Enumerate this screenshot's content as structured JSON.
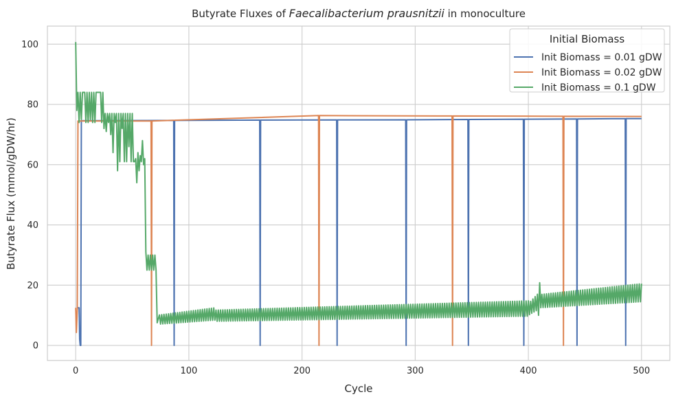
{
  "chart_data": {
    "type": "line",
    "title_prefix": "Butyrate Fluxes of ",
    "title_species": "Faecalibacterium prausnitzii",
    "title_suffix": " in monoculture",
    "xlabel": "Cycle",
    "ylabel": "Butyrate Flux (mmol/gDW/hr)",
    "xlim": [
      -25,
      525
    ],
    "ylim": [
      -5,
      106
    ],
    "xticks": [
      0,
      100,
      200,
      300,
      400,
      500
    ],
    "yticks": [
      0,
      20,
      40,
      60,
      80,
      100
    ],
    "grid": true,
    "legend": {
      "title": "Initial Biomass",
      "placement": "top-right"
    },
    "series": [
      {
        "name": "Init Biomass = 0.01 gDW",
        "color": "#4c72b0",
        "plateau": [
          [
            5,
            74.6
          ],
          [
            100,
            74.7
          ],
          [
            170,
            74.8
          ],
          [
            300,
            74.9
          ],
          [
            400,
            75.1
          ],
          [
            500,
            75.3
          ]
        ],
        "dips": [
          87,
          163,
          231,
          292,
          347,
          396,
          443,
          486
        ],
        "head": [
          [
            2,
            12.5
          ],
          [
            3,
            12.5
          ],
          [
            3.5,
            2
          ],
          [
            4,
            0
          ],
          [
            4.5,
            0
          ],
          [
            5,
            74.6
          ]
        ],
        "end_x": 500
      },
      {
        "name": "Init Biomass = 0.02 gDW",
        "color": "#dd8452",
        "plateau": [
          [
            2,
            74.5
          ],
          [
            100,
            74.5
          ],
          [
            156,
            74.6
          ],
          [
            157,
            76.4
          ],
          [
            215,
            76.3
          ],
          [
            300,
            76.2
          ],
          [
            500,
            76.0
          ]
        ],
        "dips": [
          67,
          215,
          333,
          431
        ],
        "head": [
          [
            0,
            12.5
          ],
          [
            0.6,
            4.3
          ],
          [
            1.4,
            12
          ],
          [
            2,
            74.5
          ]
        ],
        "end_x": 500
      },
      {
        "name": "Init Biomass = 0.1 gDW",
        "color": "#55a868",
        "points": [
          [
            0,
            100.7
          ],
          [
            1,
            78
          ],
          [
            2,
            84
          ],
          [
            3,
            74
          ],
          [
            4,
            84
          ],
          [
            5,
            75
          ],
          [
            6,
            84
          ],
          [
            7,
            84
          ],
          [
            8,
            84
          ],
          [
            9,
            74
          ],
          [
            10,
            84
          ],
          [
            11,
            74
          ],
          [
            12,
            84
          ],
          [
            13,
            75
          ],
          [
            14,
            84
          ],
          [
            15,
            74
          ],
          [
            16,
            84
          ],
          [
            17,
            74
          ],
          [
            18,
            84
          ],
          [
            19,
            84
          ],
          [
            20,
            84
          ],
          [
            21,
            84
          ],
          [
            22,
            84
          ],
          [
            23,
            74
          ],
          [
            24,
            84
          ],
          [
            25,
            72
          ],
          [
            26,
            77
          ],
          [
            27,
            71
          ],
          [
            28,
            77
          ],
          [
            29,
            74
          ],
          [
            30,
            77
          ],
          [
            31,
            70
          ],
          [
            32,
            77
          ],
          [
            33,
            64
          ],
          [
            34,
            77
          ],
          [
            35,
            74
          ],
          [
            36,
            77
          ],
          [
            37,
            58
          ],
          [
            38,
            77
          ],
          [
            39,
            61
          ],
          [
            40,
            77
          ],
          [
            41,
            72
          ],
          [
            42,
            77
          ],
          [
            43,
            61
          ],
          [
            44,
            77
          ],
          [
            45,
            61
          ],
          [
            46,
            77
          ],
          [
            47,
            66
          ],
          [
            48,
            77
          ],
          [
            49,
            61
          ],
          [
            50,
            77
          ],
          [
            51,
            61
          ],
          [
            52,
            61
          ],
          [
            53,
            62
          ],
          [
            54,
            54
          ],
          [
            55,
            64
          ],
          [
            56,
            58
          ],
          [
            57,
            63
          ],
          [
            58,
            61
          ],
          [
            59,
            68
          ],
          [
            60,
            60
          ],
          [
            61,
            62
          ],
          [
            62,
            31
          ],
          [
            63,
            25
          ],
          [
            64,
            30
          ],
          [
            65,
            25
          ],
          [
            66,
            30
          ],
          [
            67,
            25
          ],
          [
            68,
            30
          ],
          [
            69,
            25
          ],
          [
            70,
            30
          ],
          [
            71,
            25
          ],
          [
            72,
            7.5
          ]
        ],
        "sawtooth": {
          "x_start": 72,
          "x_end": 500,
          "step": 2,
          "segments": [
            [
              72,
              123,
              7,
              12.5
            ],
            [
              124,
              400,
              8,
              14.8
            ],
            [
              400,
              408,
              10,
              17
            ],
            [
              410,
              500,
              12.5,
              20.5
            ]
          ],
          "spikes": [
            [
              409,
              10
            ],
            [
              410,
              20.8
            ]
          ]
        }
      }
    ]
  }
}
